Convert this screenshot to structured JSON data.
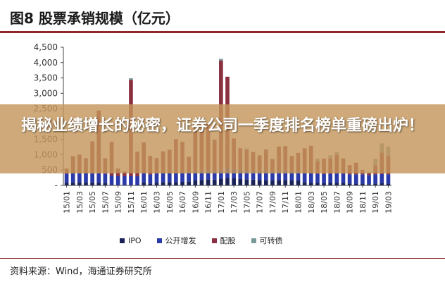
{
  "figure": {
    "title": "图8  股票承销规模（亿元）",
    "source": "资料来源：Wind，海通证券研究所"
  },
  "overlay": {
    "headline": "揭秘业绩增长的秘密，证券公司一季度排名榜单重磅出炉！"
  },
  "colors": {
    "ipo": "#1a2258",
    "follow_on": "#2b3aa8",
    "rights": "#8a3040",
    "convertible": "#7a9a9a",
    "rule": "#8c2a2a"
  },
  "chart_data": {
    "type": "bar",
    "stacked": true,
    "categories": [
      "15/01",
      "15/02",
      "15/03",
      "15/04",
      "15/05",
      "15/06",
      "15/07",
      "15/08",
      "15/09",
      "15/10",
      "15/11",
      "15/12",
      "16/01",
      "16/02",
      "16/03",
      "16/04",
      "16/05",
      "16/06",
      "16/07",
      "16/08",
      "16/09",
      "16/10",
      "16/11",
      "16/12",
      "17/01",
      "17/02",
      "17/03",
      "17/04",
      "17/05",
      "17/06",
      "17/07",
      "17/08",
      "17/09",
      "17/10",
      "17/11",
      "17/12",
      "18/01",
      "18/02",
      "18/03",
      "18/04",
      "18/05",
      "18/06",
      "18/07",
      "18/08",
      "18/09",
      "18/10",
      "18/11",
      "18/12",
      "19/01",
      "19/02",
      "19/03"
    ],
    "tick_labels": [
      "15/01",
      "15/03",
      "15/05",
      "15/07",
      "15/09",
      "15/11",
      "16/01",
      "16/03",
      "16/05",
      "16/07",
      "16/09",
      "16/11",
      "17/01",
      "17/03",
      "17/05",
      "17/07",
      "17/09",
      "17/11",
      "18/01",
      "18/03",
      "18/05",
      "18/07",
      "18/09",
      "18/11",
      "19/01",
      "19/03"
    ],
    "series": [
      {
        "name": "IPO",
        "key": "ipo",
        "values": [
          80,
          90,
          100,
          90,
          95,
          90,
          85,
          20,
          0,
          0,
          0,
          0,
          100,
          60,
          90,
          110,
          110,
          105,
          115,
          130,
          160,
          180,
          200,
          190,
          220,
          240,
          230,
          210,
          200,
          190,
          180,
          170,
          160,
          170,
          180,
          160,
          160,
          110,
          90,
          80,
          70,
          80,
          90,
          80,
          60,
          60,
          60,
          40,
          60,
          70,
          60
        ]
      },
      {
        "name": "公开增发",
        "key": "follow_on",
        "values": [
          300,
          300,
          300,
          300,
          300,
          300,
          300,
          300,
          300,
          300,
          300,
          300,
          300,
          300,
          300,
          300,
          300,
          300,
          300,
          300,
          300,
          300,
          300,
          300,
          300,
          300,
          300,
          300,
          300,
          300,
          300,
          300,
          300,
          300,
          300,
          300,
          300,
          300,
          300,
          300,
          300,
          300,
          300,
          300,
          300,
          300,
          300,
          300,
          300,
          300,
          300
        ]
      },
      {
        "name": "配股",
        "key": "rights",
        "values": [
          170,
          560,
          600,
          500,
          1040,
          2050,
          500,
          1100,
          250,
          150,
          3140,
          800,
          1000,
          600,
          500,
          700,
          750,
          1100,
          1000,
          500,
          1400,
          1500,
          1500,
          1000,
          3550,
          3000,
          1000,
          700,
          650,
          600,
          500,
          700,
          400,
          800,
          800,
          500,
          600,
          800,
          900,
          400,
          500,
          500,
          600,
          500,
          300,
          380,
          150,
          50,
          300,
          700,
          600
        ]
      },
      {
        "name": "可转债",
        "key": "convertible",
        "values": [
          0,
          0,
          0,
          0,
          0,
          0,
          0,
          0,
          0,
          0,
          50,
          0,
          0,
          0,
          0,
          0,
          0,
          0,
          0,
          0,
          0,
          0,
          0,
          0,
          50,
          0,
          0,
          0,
          50,
          0,
          0,
          0,
          0,
          0,
          0,
          0,
          0,
          0,
          0,
          100,
          0,
          100,
          100,
          0,
          0,
          0,
          0,
          50,
          200,
          300,
          300
        ]
      }
    ],
    "xlabel": "",
    "ylabel": "",
    "ylim": [
      0,
      4500
    ],
    "yticks": [
      "4,500",
      "4,000",
      "3,500",
      "3,000",
      "2,500",
      "2,000",
      "1,500",
      "1,000",
      "500",
      "-"
    ],
    "ytick_values": [
      4500,
      4000,
      3500,
      3000,
      2500,
      2000,
      1500,
      1000,
      500,
      0
    ],
    "grid": false,
    "legend_position": "bottom"
  }
}
